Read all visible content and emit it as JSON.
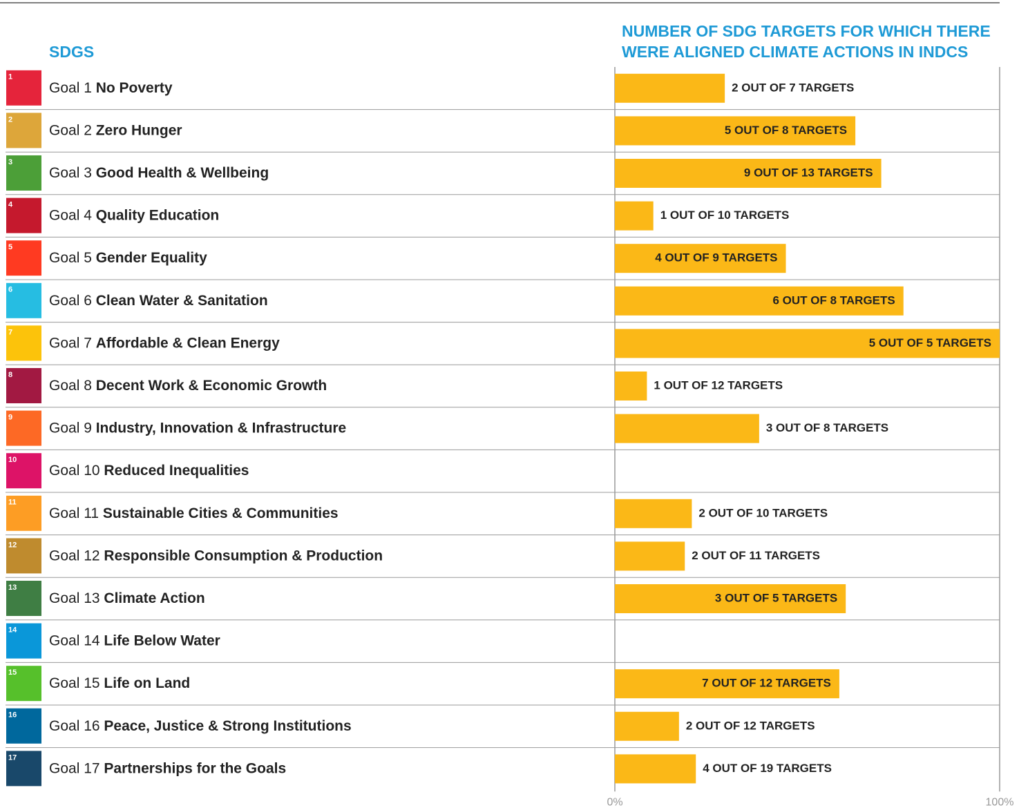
{
  "chart_data": {
    "type": "bar",
    "orientation": "horizontal",
    "title": "NUMBER OF SDG TARGETS FOR WHICH THERE WERE ALIGNED CLIMATE ACTIONS IN INDCS",
    "category_header": "SDGS",
    "goal_labels": [
      "Goal 1",
      "Goal 2",
      "Goal 3",
      "Goal 4",
      "Goal 5",
      "Goal 6",
      "Goal 7",
      "Goal 8",
      "Goal 9",
      "Goal 10",
      "Goal 11",
      "Goal 12",
      "Goal 13",
      "Goal 14",
      "Goal 15",
      "Goal 16",
      "Goal 17"
    ],
    "icon_numbers": [
      "1",
      "2",
      "3",
      "4",
      "5",
      "6",
      "7",
      "8",
      "9",
      "10",
      "11",
      "12",
      "13",
      "14",
      "15",
      "16",
      "17"
    ],
    "icon_colors": [
      "#e5243b",
      "#dda63a",
      "#4c9f38",
      "#c5192d",
      "#ff3a21",
      "#26bde2",
      "#fcc30b",
      "#a21942",
      "#fd6925",
      "#dd1367",
      "#fd9d24",
      "#bf8b2e",
      "#3f7e44",
      "#0a97d9",
      "#56c02b",
      "#00689d",
      "#19486a"
    ],
    "categories": [
      "No Poverty",
      "Zero Hunger",
      "Good Health & Wellbeing",
      "Quality Education",
      "Gender Equality",
      "Clean Water & Sanitation",
      "Affordable & Clean Energy",
      "Decent Work & Economic Growth",
      "Industry, Innovation & Infrastructure",
      "Reduced Inequalities",
      "Sustainable Cities & Communities",
      "Responsible Consumption & Production",
      "Climate Action",
      "Life Below Water",
      "Life on Land",
      "Peace, Justice & Strong Institutions",
      "Partnerships for the Goals"
    ],
    "values": [
      28.57,
      62.5,
      69.23,
      10,
      44.44,
      75,
      100,
      8.33,
      37.5,
      0,
      20,
      18.18,
      60,
      0,
      58.33,
      16.67,
      21.05
    ],
    "value_labels": [
      "2 OUT OF 7 TARGETS",
      "5 OUT OF 8 TARGETS",
      "9 OUT OF 13 TARGETS",
      "1 OUT OF 10 TARGETS",
      "4 OUT OF 9 TARGETS",
      "6 OUT OF 8 TARGETS",
      "5 OUT OF 5 TARGETS",
      "1 OUT OF 12 TARGETS",
      "3 OUT OF 8 TARGETS",
      null,
      "2 OUT OF 10 TARGETS",
      "2 OUT OF 11 TARGETS",
      "3 OUT OF 5 TARGETS",
      null,
      "7 OUT OF 12 TARGETS",
      "2 OUT OF 12 TARGETS",
      "4 OUT OF 19 TARGETS"
    ],
    "color": "#fbb817",
    "xlim": [
      0,
      100
    ],
    "xticks": [
      {
        "value": 0,
        "label": "0%"
      },
      {
        "value": 100,
        "label": "100%"
      }
    ]
  }
}
